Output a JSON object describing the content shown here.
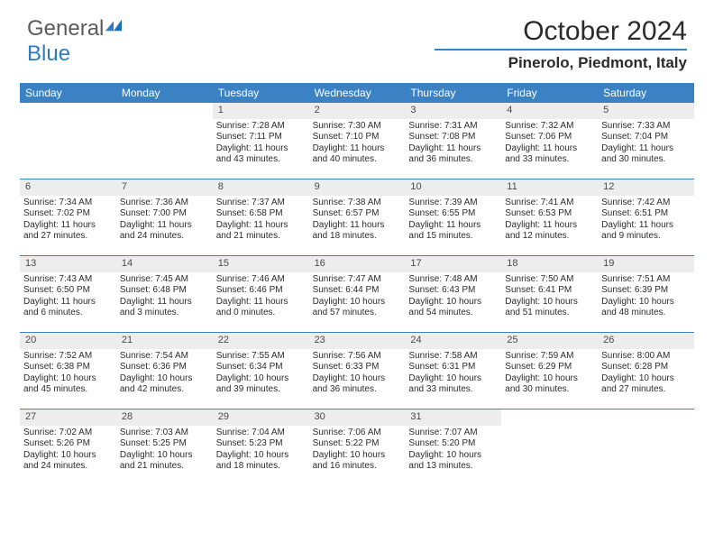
{
  "logo": {
    "text1": "General",
    "text2": "Blue"
  },
  "title": "October 2024",
  "location": "Pinerolo, Piedmont, Italy",
  "colors": {
    "header_blue": "#3b82c4",
    "daynum_bg": "#ededed",
    "text": "#2b2b2b",
    "logo_gray": "#5a5a5a",
    "logo_blue": "#2e7cc0"
  },
  "day_names": [
    "Sunday",
    "Monday",
    "Tuesday",
    "Wednesday",
    "Thursday",
    "Friday",
    "Saturday"
  ],
  "weeks": [
    [
      {
        "n": "",
        "sr": "",
        "ss": "",
        "dl": ""
      },
      {
        "n": "",
        "sr": "",
        "ss": "",
        "dl": ""
      },
      {
        "n": "1",
        "sr": "Sunrise: 7:28 AM",
        "ss": "Sunset: 7:11 PM",
        "dl": "Daylight: 11 hours and 43 minutes."
      },
      {
        "n": "2",
        "sr": "Sunrise: 7:30 AM",
        "ss": "Sunset: 7:10 PM",
        "dl": "Daylight: 11 hours and 40 minutes."
      },
      {
        "n": "3",
        "sr": "Sunrise: 7:31 AM",
        "ss": "Sunset: 7:08 PM",
        "dl": "Daylight: 11 hours and 36 minutes."
      },
      {
        "n": "4",
        "sr": "Sunrise: 7:32 AM",
        "ss": "Sunset: 7:06 PM",
        "dl": "Daylight: 11 hours and 33 minutes."
      },
      {
        "n": "5",
        "sr": "Sunrise: 7:33 AM",
        "ss": "Sunset: 7:04 PM",
        "dl": "Daylight: 11 hours and 30 minutes."
      }
    ],
    [
      {
        "n": "6",
        "sr": "Sunrise: 7:34 AM",
        "ss": "Sunset: 7:02 PM",
        "dl": "Daylight: 11 hours and 27 minutes."
      },
      {
        "n": "7",
        "sr": "Sunrise: 7:36 AM",
        "ss": "Sunset: 7:00 PM",
        "dl": "Daylight: 11 hours and 24 minutes."
      },
      {
        "n": "8",
        "sr": "Sunrise: 7:37 AM",
        "ss": "Sunset: 6:58 PM",
        "dl": "Daylight: 11 hours and 21 minutes."
      },
      {
        "n": "9",
        "sr": "Sunrise: 7:38 AM",
        "ss": "Sunset: 6:57 PM",
        "dl": "Daylight: 11 hours and 18 minutes."
      },
      {
        "n": "10",
        "sr": "Sunrise: 7:39 AM",
        "ss": "Sunset: 6:55 PM",
        "dl": "Daylight: 11 hours and 15 minutes."
      },
      {
        "n": "11",
        "sr": "Sunrise: 7:41 AM",
        "ss": "Sunset: 6:53 PM",
        "dl": "Daylight: 11 hours and 12 minutes."
      },
      {
        "n": "12",
        "sr": "Sunrise: 7:42 AM",
        "ss": "Sunset: 6:51 PM",
        "dl": "Daylight: 11 hours and 9 minutes."
      }
    ],
    [
      {
        "n": "13",
        "sr": "Sunrise: 7:43 AM",
        "ss": "Sunset: 6:50 PM",
        "dl": "Daylight: 11 hours and 6 minutes."
      },
      {
        "n": "14",
        "sr": "Sunrise: 7:45 AM",
        "ss": "Sunset: 6:48 PM",
        "dl": "Daylight: 11 hours and 3 minutes."
      },
      {
        "n": "15",
        "sr": "Sunrise: 7:46 AM",
        "ss": "Sunset: 6:46 PM",
        "dl": "Daylight: 11 hours and 0 minutes."
      },
      {
        "n": "16",
        "sr": "Sunrise: 7:47 AM",
        "ss": "Sunset: 6:44 PM",
        "dl": "Daylight: 10 hours and 57 minutes."
      },
      {
        "n": "17",
        "sr": "Sunrise: 7:48 AM",
        "ss": "Sunset: 6:43 PM",
        "dl": "Daylight: 10 hours and 54 minutes."
      },
      {
        "n": "18",
        "sr": "Sunrise: 7:50 AM",
        "ss": "Sunset: 6:41 PM",
        "dl": "Daylight: 10 hours and 51 minutes."
      },
      {
        "n": "19",
        "sr": "Sunrise: 7:51 AM",
        "ss": "Sunset: 6:39 PM",
        "dl": "Daylight: 10 hours and 48 minutes."
      }
    ],
    [
      {
        "n": "20",
        "sr": "Sunrise: 7:52 AM",
        "ss": "Sunset: 6:38 PM",
        "dl": "Daylight: 10 hours and 45 minutes."
      },
      {
        "n": "21",
        "sr": "Sunrise: 7:54 AM",
        "ss": "Sunset: 6:36 PM",
        "dl": "Daylight: 10 hours and 42 minutes."
      },
      {
        "n": "22",
        "sr": "Sunrise: 7:55 AM",
        "ss": "Sunset: 6:34 PM",
        "dl": "Daylight: 10 hours and 39 minutes."
      },
      {
        "n": "23",
        "sr": "Sunrise: 7:56 AM",
        "ss": "Sunset: 6:33 PM",
        "dl": "Daylight: 10 hours and 36 minutes."
      },
      {
        "n": "24",
        "sr": "Sunrise: 7:58 AM",
        "ss": "Sunset: 6:31 PM",
        "dl": "Daylight: 10 hours and 33 minutes."
      },
      {
        "n": "25",
        "sr": "Sunrise: 7:59 AM",
        "ss": "Sunset: 6:29 PM",
        "dl": "Daylight: 10 hours and 30 minutes."
      },
      {
        "n": "26",
        "sr": "Sunrise: 8:00 AM",
        "ss": "Sunset: 6:28 PM",
        "dl": "Daylight: 10 hours and 27 minutes."
      }
    ],
    [
      {
        "n": "27",
        "sr": "Sunrise: 7:02 AM",
        "ss": "Sunset: 5:26 PM",
        "dl": "Daylight: 10 hours and 24 minutes."
      },
      {
        "n": "28",
        "sr": "Sunrise: 7:03 AM",
        "ss": "Sunset: 5:25 PM",
        "dl": "Daylight: 10 hours and 21 minutes."
      },
      {
        "n": "29",
        "sr": "Sunrise: 7:04 AM",
        "ss": "Sunset: 5:23 PM",
        "dl": "Daylight: 10 hours and 18 minutes."
      },
      {
        "n": "30",
        "sr": "Sunrise: 7:06 AM",
        "ss": "Sunset: 5:22 PM",
        "dl": "Daylight: 10 hours and 16 minutes."
      },
      {
        "n": "31",
        "sr": "Sunrise: 7:07 AM",
        "ss": "Sunset: 5:20 PM",
        "dl": "Daylight: 10 hours and 13 minutes."
      },
      {
        "n": "",
        "sr": "",
        "ss": "",
        "dl": ""
      },
      {
        "n": "",
        "sr": "",
        "ss": "",
        "dl": ""
      }
    ]
  ]
}
